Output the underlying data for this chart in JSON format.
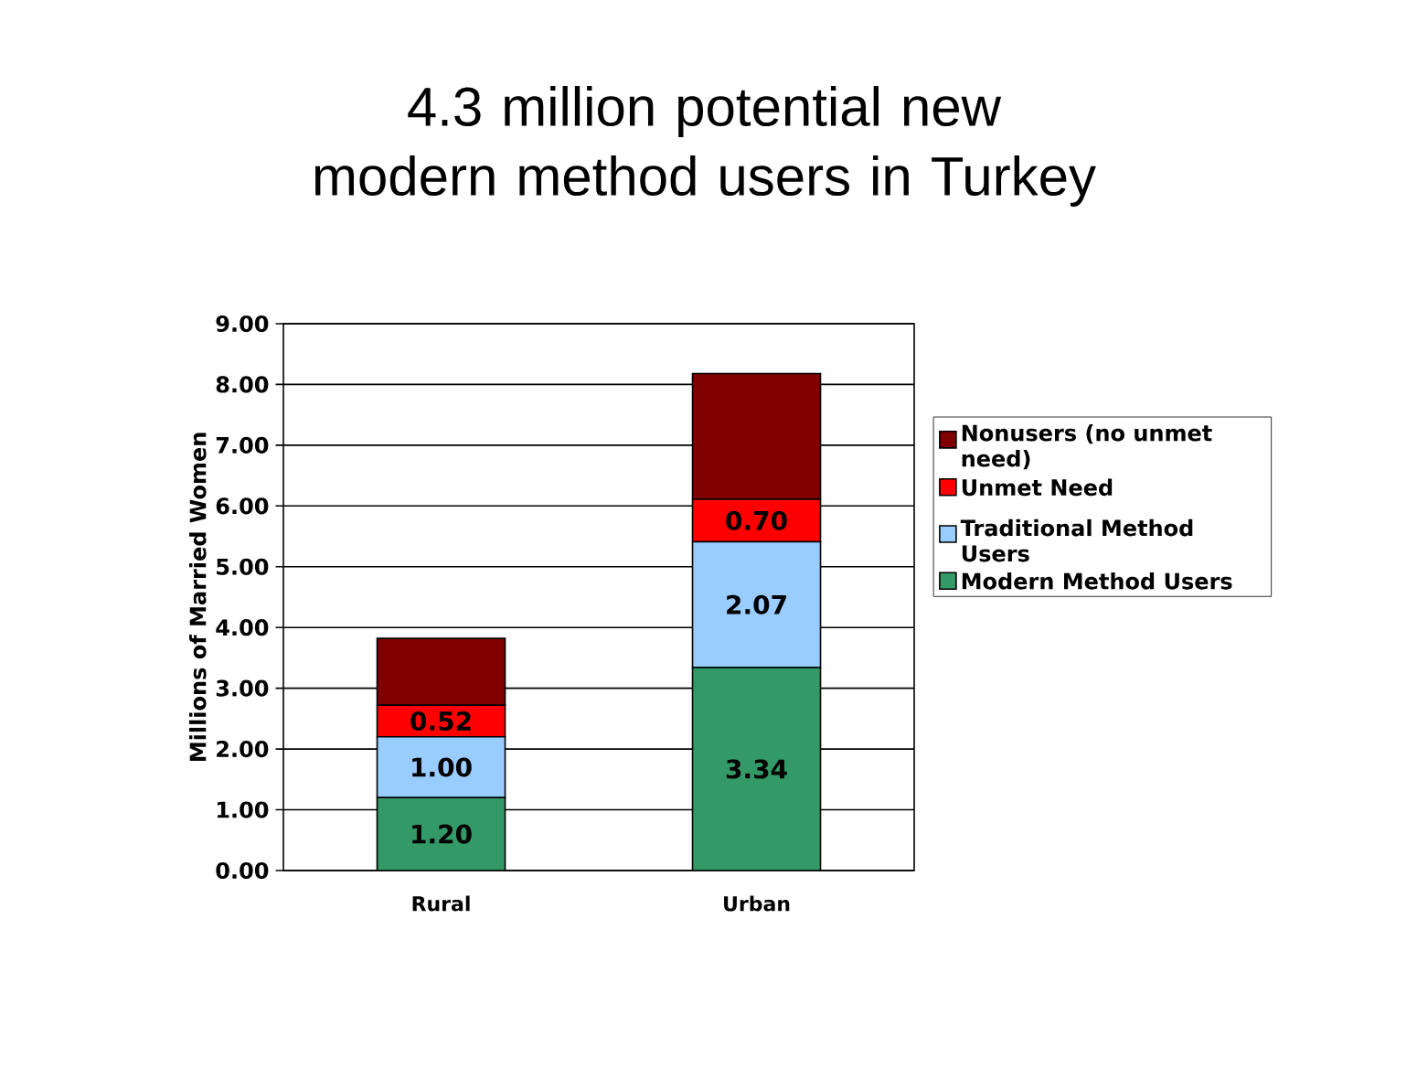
{
  "chart_data": {
    "type": "bar",
    "title": "4.3 million potential new modern method users in Turkey",
    "ylabel": "Millions of Married Women",
    "categories": [
      "Rural",
      "Urban"
    ],
    "stacked": true,
    "series": [
      {
        "name": "Modern Method Users",
        "color": "#339966",
        "values": [
          1.2,
          3.34
        ],
        "value_labels": [
          "1.20",
          "3.34"
        ]
      },
      {
        "name": "Traditional Method Users",
        "color": "#99ccff",
        "values": [
          1.0,
          2.07
        ],
        "value_labels": [
          "1.00",
          "2.07"
        ]
      },
      {
        "name": "Unmet Need",
        "color": "#ff0000",
        "values": [
          0.52,
          0.7
        ],
        "value_labels": [
          "0.52",
          "0.70"
        ]
      },
      {
        "name": "Nonusers (no unmet need)",
        "color": "#800000",
        "values": [
          1.1,
          2.07
        ]
      }
    ],
    "ylim": [
      0,
      9
    ],
    "yticks": [
      {
        "value": 0,
        "label": "0.00"
      },
      {
        "value": 1,
        "label": "1.00"
      },
      {
        "value": 2,
        "label": "2.00"
      },
      {
        "value": 3,
        "label": "3.00"
      },
      {
        "value": 4,
        "label": "4.00"
      },
      {
        "value": 5,
        "label": "5.00"
      },
      {
        "value": 6,
        "label": "6.00"
      },
      {
        "value": 7,
        "label": "7.00"
      },
      {
        "value": 8,
        "label": "8.00"
      },
      {
        "value": 9,
        "label": "9.00"
      }
    ],
    "grid": "y",
    "legend": "right"
  }
}
